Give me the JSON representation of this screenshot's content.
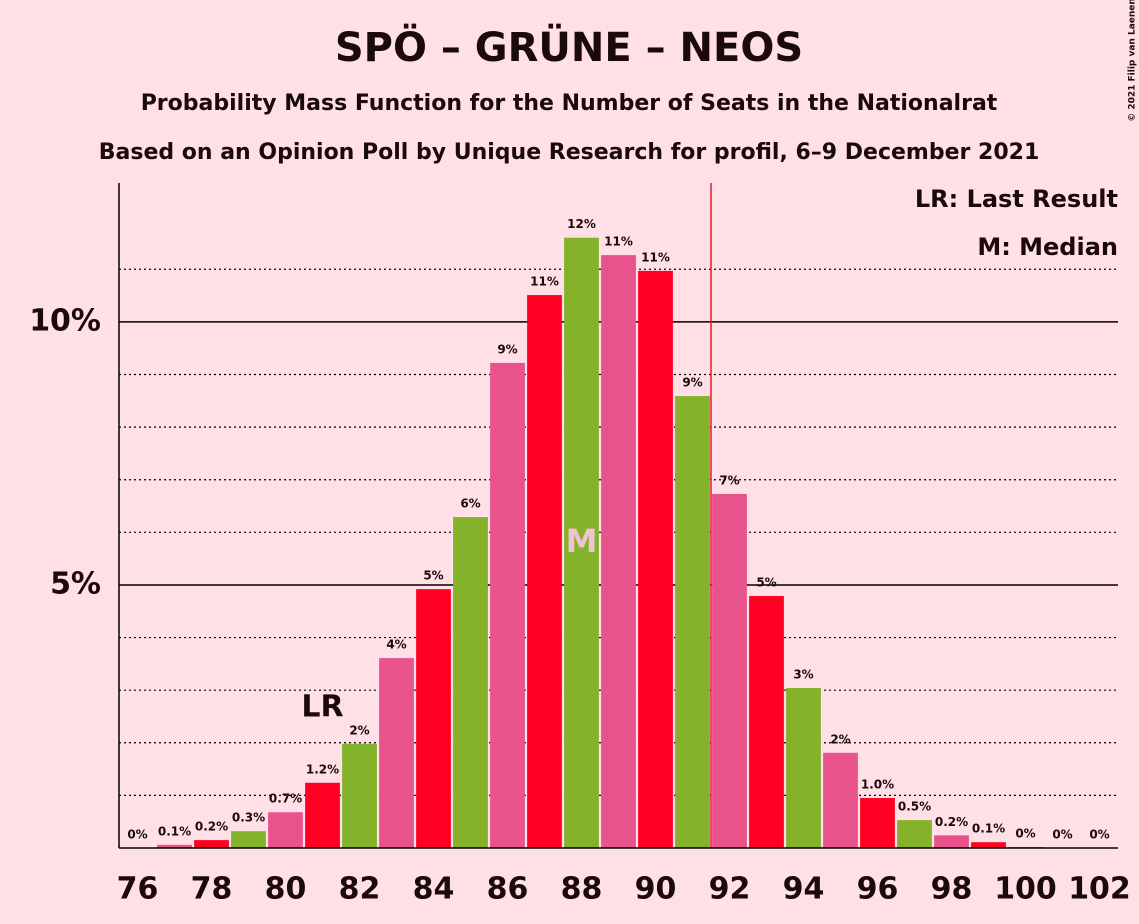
{
  "chart_data": {
    "type": "bar",
    "title": "SPÖ – GRÜNE – NEOS",
    "subtitle": "Probability Mass Function for the Number of Seats in the Nationalrat",
    "subtitle2": "Based on an Opinion Poll by Unique Research for profil, 6–9 December 2021",
    "copyright": "© 2021 Filip van Laenen",
    "legend": [
      "LR: Last Result",
      "M: Median"
    ],
    "x": [
      76,
      77,
      78,
      79,
      80,
      81,
      82,
      83,
      84,
      85,
      86,
      87,
      88,
      89,
      90,
      91,
      92,
      93,
      94,
      95,
      96,
      97,
      98,
      99,
      100,
      101,
      102
    ],
    "values": [
      0,
      0.06,
      0.15,
      0.32,
      0.68,
      1.24,
      1.98,
      3.61,
      4.92,
      6.29,
      9.22,
      10.51,
      11.6,
      11.27,
      10.97,
      8.59,
      6.73,
      4.79,
      3.04,
      1.81,
      0.95,
      0.53,
      0.24,
      0.11,
      0.02,
      0,
      0
    ],
    "value_labels": [
      "0%",
      "0.1%",
      "0.2%",
      "0.3%",
      "0.7%",
      "1.2%",
      "2%",
      "4%",
      "5%",
      "6%",
      "9%",
      "11%",
      "12%",
      "11%",
      "11%",
      "9%",
      "7%",
      "5%",
      "3%",
      "2%",
      "1.0%",
      "0.5%",
      "0.2%",
      "0.1%",
      "0%",
      "0%",
      "0%"
    ],
    "colors": [
      "#e9538c",
      "#e9538c",
      "#ff0022",
      "#85b22b",
      "#e9538c",
      "#ff0022",
      "#85b22b",
      "#e9538c",
      "#ff0022",
      "#85b22b",
      "#e9538c",
      "#ff0022",
      "#85b22b",
      "#e9538c",
      "#ff0022",
      "#85b22b",
      "#e9538c",
      "#ff0022",
      "#85b22b",
      "#e9538c",
      "#ff0022",
      "#85b22b",
      "#e9538c",
      "#ff0022",
      "#85b22b",
      "#e9538c",
      "#ff0022"
    ],
    "xlim": [
      75.5,
      102.5
    ],
    "xticks": [
      76,
      78,
      80,
      82,
      84,
      86,
      88,
      90,
      92,
      94,
      96,
      98,
      100,
      102
    ],
    "ylim": [
      0,
      12.64
    ],
    "yticks": [
      {
        "value": 5,
        "label": "5%"
      },
      {
        "value": 10,
        "label": "10%"
      }
    ],
    "minor_yticks": [
      1,
      2,
      3,
      4,
      6,
      7,
      8,
      9,
      11
    ],
    "majority_line": 91.5,
    "annotations": [
      {
        "text": "LR",
        "x": 81
      },
      {
        "text": "M",
        "x": 88
      }
    ]
  }
}
